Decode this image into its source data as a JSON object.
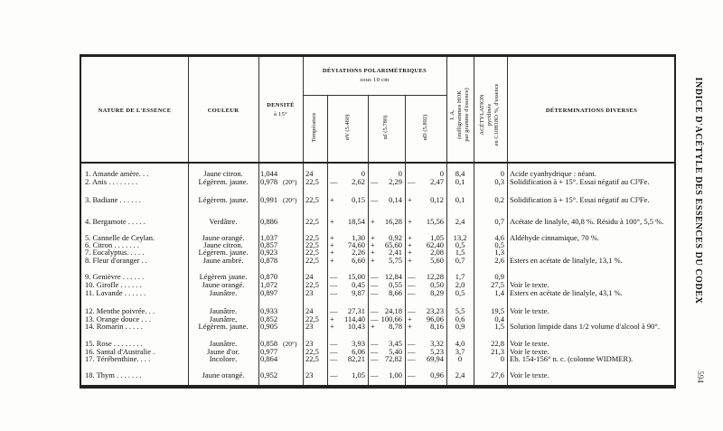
{
  "side_title": "INDICE D'ACÉTYLE DES ESSENCES DU CODEX",
  "page_number": "594",
  "headers": {
    "nature": "NATURE DE L'ESSENCE",
    "couleur": "COULEUR",
    "densite": "DENSITÉ",
    "densite2": "à 15°",
    "deviations": "DÉVIATIONS POLARIMÉTRIQUES",
    "deviations2": "sous 10 cm",
    "temperature": "Température",
    "av": "αV (5.460)",
    "aj": "αJ (5.780)",
    "ad": "αD (5.892)",
    "ia": "I. A.",
    "ia2": "(milligrammes HOK",
    "ia3": "par gramme d'essence)",
    "acet": "ACÉTYLATION",
    "acet2": "pyridinée",
    "acet3": "en C10H18O %, d'essence",
    "det": "DÉTERMINATIONS DIVERSES"
  },
  "rows": [
    {
      "name": "1. Amande amère. . .",
      "couleur": "Jaune citron.",
      "densite": "1,044",
      "dt": "",
      "temp": "24",
      "av": [
        "",
        "0"
      ],
      "aj": [
        "",
        "0"
      ],
      "ad": [
        "",
        "0"
      ],
      "ia": "8,4",
      "acet": "0",
      "det": "Acide cyanhydrique : néant."
    },
    {
      "name": "2. Anis . . . . . . . .",
      "couleur": "Légèrem. jaune.",
      "densite": "0,978",
      "dt": "(20°)",
      "temp": "22,5",
      "av": [
        "—",
        "2,62"
      ],
      "aj": [
        "—",
        "2,29"
      ],
      "ad": [
        "—",
        "2,47"
      ],
      "ia": "0,1",
      "acet": "0,3",
      "det": "Solidification à + 15°. Essai négatif au Cl³Fe."
    },
    {
      "name": "3. Badiane . . . . . .",
      "couleur": "Légèrem. jaune.",
      "densite": "0,991",
      "dt": "(20°)",
      "temp": "22,5",
      "av": [
        "+",
        "0,15"
      ],
      "aj": [
        "—",
        "0,14"
      ],
      "ad": [
        "+",
        "0,12"
      ],
      "ia": "0,1",
      "acet": "0,2",
      "det": "Solidification à + 15°. Essai négatif au Cl³Fe."
    },
    {
      "name": "4. Bergamote . . . . .",
      "couleur": "Verdâtre.",
      "densite": "0,886",
      "dt": "",
      "temp": "22,5",
      "av": [
        "+",
        "18,54"
      ],
      "aj": [
        "+",
        "16,28"
      ],
      "ad": [
        "+",
        "15,56"
      ],
      "ia": "2,4",
      "acet": "0,7",
      "det": "Acétate de linalyle, 40,8 %. Résidu à 100°, 5,5 %."
    },
    {
      "name": "5. Cannelle de Ceylan.",
      "couleur": "Jaune orangé.",
      "densite": "1,037",
      "dt": "",
      "temp": "22,5",
      "av": [
        "+",
        "1,30"
      ],
      "aj": [
        "+",
        "0,92"
      ],
      "ad": [
        "+",
        "1,05"
      ],
      "ia": "13,2",
      "acet": "4,6",
      "det": "Aldéhyde cinnamique, 70 %."
    },
    {
      "name": "6. Citron . . . . . . .",
      "couleur": "Jaune citron.",
      "densite": "0,857",
      "dt": "",
      "temp": "22,5",
      "av": [
        "+",
        "74,60"
      ],
      "aj": [
        "+",
        "65,60"
      ],
      "ad": [
        "+",
        "62,40"
      ],
      "ia": "0,5",
      "acet": "0,5",
      "det": ""
    },
    {
      "name": "7. Eucalyptus. . . . .",
      "couleur": "Légèrem. jaune.",
      "densite": "0,923",
      "dt": "",
      "temp": "22,5",
      "av": [
        "+",
        "2,26"
      ],
      "aj": [
        "+",
        "2,41"
      ],
      "ad": [
        "+",
        "2,08"
      ],
      "ia": "1,5",
      "acet": "1,3",
      "det": ""
    },
    {
      "name": "8. Fleur d'oranger . .",
      "couleur": "Jaune ambré.",
      "densite": "0,878",
      "dt": "",
      "temp": "22,5",
      "av": [
        "+",
        "6,60"
      ],
      "aj": [
        "+",
        "5,75"
      ],
      "ad": [
        "+",
        "5,60"
      ],
      "ia": "0,7",
      "acet": "2,6",
      "det": "Esters en acétate de linalyle, 13,1 %."
    },
    {
      "name": "9. Genièvre . . . . . .",
      "couleur": "Légèrem jaune.",
      "densite": "0,870",
      "dt": "",
      "temp": "24",
      "av": [
        "—",
        "15,00"
      ],
      "aj": [
        "—",
        "12,84"
      ],
      "ad": [
        "—",
        "12,28"
      ],
      "ia": "1,7",
      "acet": "0,9",
      "det": ""
    },
    {
      "name": "10. Girofle . . . . . .",
      "couleur": "Jaune orangé.",
      "densite": "1,072",
      "dt": "",
      "temp": "22,5",
      "av": [
        "—",
        "0,45"
      ],
      "aj": [
        "—",
        "0,55"
      ],
      "ad": [
        "—",
        "0,50"
      ],
      "ia": "2,0",
      "acet": "27,5",
      "det": "Voir le texte."
    },
    {
      "name": "11. Lavande . . . . . .",
      "couleur": "Jaunâtre.",
      "densite": "0,897",
      "dt": "",
      "temp": "23",
      "av": [
        "—",
        "9,87"
      ],
      "aj": [
        "—",
        "8,66"
      ],
      "ad": [
        "—",
        "8,29"
      ],
      "ia": "0,5",
      "acet": "1,4",
      "det": "Esters en acétate de linalyle, 43,1 %."
    },
    {
      "name": "12. Menthe poivrée. . .",
      "couleur": "Jaunâtre.",
      "densite": "0,933",
      "dt": "",
      "temp": "24",
      "av": [
        "—",
        "27,31"
      ],
      "aj": [
        "—",
        "24,18"
      ],
      "ad": [
        "—",
        "23,23"
      ],
      "ia": "5,5",
      "acet": "19,5",
      "det": "Voir le texte."
    },
    {
      "name": "13. Orange douce . . .",
      "couleur": "Jaunâtre,",
      "densite": "0,852",
      "dt": "",
      "temp": "22,5",
      "av": [
        "+",
        "114,40"
      ],
      "aj": [
        "—",
        "100,66"
      ],
      "ad": [
        "+",
        "96,06"
      ],
      "ia": "0,6",
      "acet": "0,4",
      "det": ""
    },
    {
      "name": "14. Romarin . . . . .",
      "couleur": "Légèrem. jaune.",
      "densite": "0,905",
      "dt": "",
      "temp": "23",
      "av": [
        "+",
        "10,43"
      ],
      "aj": [
        "+",
        "8,78"
      ],
      "ad": [
        "+",
        "8,16"
      ],
      "ia": "0,9",
      "acet": "1,5",
      "det": "Solution limpide dans 1/2 volume d'alcool à 90°."
    },
    {
      "name": "15. Rose . . . . . . . .",
      "couleur": "Jaunâtre.",
      "densite": "0,858",
      "dt": "(20°)",
      "temp": "23",
      "av": [
        "—",
        "3,93"
      ],
      "aj": [
        "—",
        "3,45"
      ],
      "ad": [
        "—",
        "3,32"
      ],
      "ia": "4,0",
      "acet": "22,8",
      "det": "Voir le texte."
    },
    {
      "name": "16. Santal d'Australie .",
      "couleur": "Jaune d'or.",
      "densite": "0,977",
      "dt": "",
      "temp": "22,5",
      "av": [
        "—",
        "6,06"
      ],
      "aj": [
        "—",
        "5,40"
      ],
      "ad": [
        "—",
        "5,23"
      ],
      "ia": "3,7",
      "acet": "21,3",
      "det": "Voir le texte."
    },
    {
      "name": "17. Térébenthine. . . .",
      "couleur": "Incolore.",
      "densite": "0,864",
      "dt": "",
      "temp": "22,5",
      "av": [
        "—",
        "82,21"
      ],
      "aj": [
        "—",
        "72,82"
      ],
      "ad": [
        "—",
        "69,94"
      ],
      "ia": "0",
      "acet": "0",
      "det": "Eb. 154-156° n. c. (colonne WIDMER)."
    },
    {
      "name": "18. Thym . . . . . . .",
      "couleur": "Jaune orangé.",
      "densite": "0,952",
      "dt": "",
      "temp": "23",
      "av": [
        "—",
        "1,05"
      ],
      "aj": [
        "—",
        "1,00"
      ],
      "ad": [
        "—",
        "0,96"
      ],
      "ia": "2,4",
      "acet": "27,6",
      "det": "Voir le texte."
    }
  ]
}
